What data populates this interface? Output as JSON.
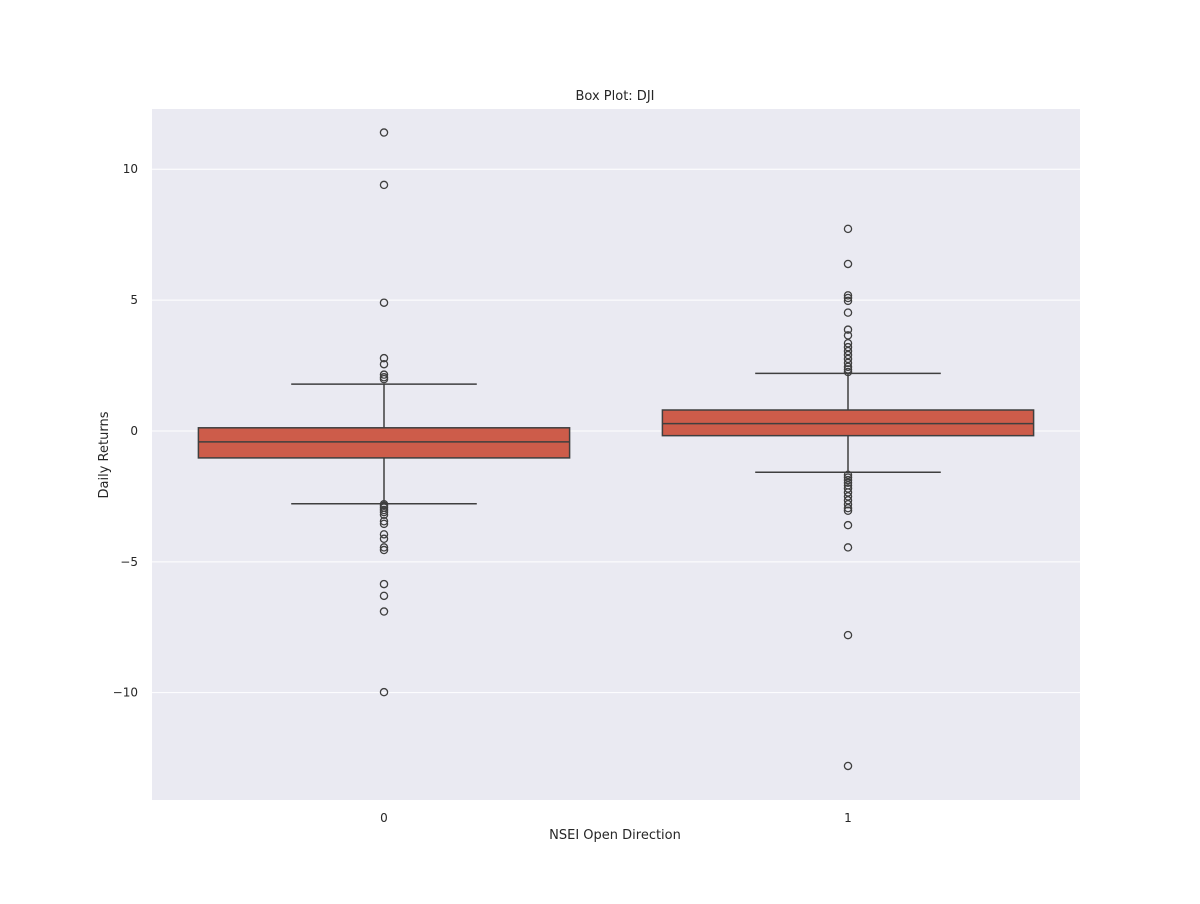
{
  "chart_data": {
    "type": "box",
    "title": "Box Plot: DJI",
    "xlabel": "NSEI Open Direction",
    "ylabel": "Daily Returns",
    "categories": [
      "0",
      "1"
    ],
    "ylim": [
      -14.1,
      12.3
    ],
    "yticks": [
      -10,
      -5,
      0,
      5,
      10
    ],
    "ytick_labels": [
      "−10",
      "−5",
      "0",
      "5",
      "10"
    ],
    "grid": true,
    "box_color": "#cd5c4a",
    "background_color": "#eaeaf2",
    "boxes": [
      {
        "category": "0",
        "whisker_low": -2.78,
        "q1": -1.03,
        "median": -0.42,
        "q3": 0.12,
        "whisker_high": 1.79,
        "outliers": [
          11.4,
          9.4,
          4.9,
          2.78,
          2.55,
          2.15,
          2.05,
          1.98,
          -2.8,
          -2.86,
          -2.93,
          -3.02,
          -3.1,
          -3.2,
          -3.45,
          -3.55,
          -3.95,
          -4.12,
          -4.45,
          -4.55,
          -5.85,
          -6.3,
          -6.9,
          -9.98
        ]
      },
      {
        "category": "1",
        "whisker_low": -1.58,
        "q1": -0.18,
        "median": 0.28,
        "q3": 0.8,
        "whisker_high": 2.2,
        "outliers": [
          7.72,
          6.38,
          5.18,
          5.08,
          4.97,
          4.52,
          3.87,
          3.65,
          3.35,
          3.2,
          3.05,
          2.9,
          2.75,
          2.6,
          2.45,
          2.35,
          2.25,
          -1.68,
          -1.78,
          -1.88,
          -1.98,
          -2.08,
          -2.2,
          -2.35,
          -2.5,
          -2.65,
          -2.8,
          -2.95,
          -3.05,
          -3.6,
          -4.45,
          -7.8,
          -12.8
        ]
      }
    ]
  }
}
